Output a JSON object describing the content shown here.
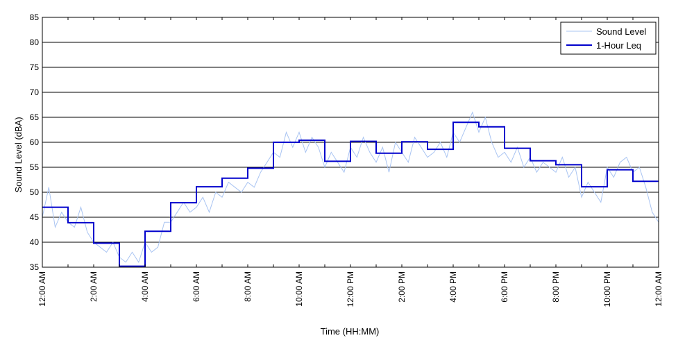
{
  "chart_data": {
    "type": "line",
    "title": "",
    "xlabel": "Time (HH:MM)",
    "ylabel": "Sound Level (dBA)",
    "ylim": [
      35,
      85
    ],
    "xlim": [
      0,
      24
    ],
    "x_unit": "hours",
    "grid": "horizontal",
    "legend_position": "top-right",
    "yticks": [
      35,
      40,
      45,
      50,
      55,
      60,
      65,
      70,
      75,
      80,
      85
    ],
    "xticks": [
      {
        "x": 0,
        "label": "12:00 AM"
      },
      {
        "x": 2,
        "label": "2:00 AM"
      },
      {
        "x": 4,
        "label": "4:00 AM"
      },
      {
        "x": 6,
        "label": "6:00 AM"
      },
      {
        "x": 8,
        "label": "8:00 AM"
      },
      {
        "x": 10,
        "label": "10:00 AM"
      },
      {
        "x": 12,
        "label": "12:00 PM"
      },
      {
        "x": 14,
        "label": "2:00 PM"
      },
      {
        "x": 16,
        "label": "4:00 PM"
      },
      {
        "x": 18,
        "label": "6:00 PM"
      },
      {
        "x": 20,
        "label": "8:00 PM"
      },
      {
        "x": 22,
        "label": "10:00 PM"
      },
      {
        "x": 24,
        "label": "12:00 AM"
      }
    ],
    "series": [
      {
        "name": "Sound Level",
        "color": "#a9c4f2",
        "style": "thin",
        "x": [
          0.0,
          0.25,
          0.5,
          0.75,
          1.0,
          1.25,
          1.5,
          1.75,
          2.0,
          2.25,
          2.5,
          2.75,
          3.0,
          3.25,
          3.5,
          3.75,
          4.0,
          4.25,
          4.5,
          4.75,
          5.0,
          5.25,
          5.5,
          5.75,
          6.0,
          6.25,
          6.5,
          6.75,
          7.0,
          7.25,
          7.5,
          7.75,
          8.0,
          8.25,
          8.5,
          8.75,
          9.0,
          9.25,
          9.5,
          9.75,
          10.0,
          10.25,
          10.5,
          10.75,
          11.0,
          11.25,
          11.5,
          11.75,
          12.0,
          12.25,
          12.5,
          12.75,
          13.0,
          13.25,
          13.5,
          13.75,
          14.0,
          14.25,
          14.5,
          14.75,
          15.0,
          15.25,
          15.5,
          15.75,
          16.0,
          16.25,
          16.5,
          16.75,
          17.0,
          17.25,
          17.5,
          17.75,
          18.0,
          18.25,
          18.5,
          18.75,
          19.0,
          19.25,
          19.5,
          19.75,
          20.0,
          20.25,
          20.5,
          20.75,
          21.0,
          21.25,
          21.5,
          21.75,
          22.0,
          22.25,
          22.5,
          22.75,
          23.0,
          23.25,
          23.5,
          23.75,
          24.0
        ],
        "values": [
          45,
          51,
          43,
          46,
          44,
          43,
          47,
          42,
          40,
          39,
          38,
          40,
          37,
          36,
          38,
          36,
          40,
          38,
          39,
          44,
          44,
          46,
          48,
          46,
          47,
          49,
          46,
          50,
          49,
          52,
          51,
          50,
          52,
          51,
          54,
          56,
          58,
          57,
          62,
          59,
          62,
          58,
          61,
          59,
          55,
          58,
          56,
          54,
          59,
          57,
          61,
          58,
          56,
          59,
          54,
          60,
          58,
          56,
          61,
          59,
          57,
          58,
          60,
          57,
          62,
          60,
          63,
          66,
          62,
          65,
          60,
          57,
          58,
          56,
          59,
          55,
          57,
          54,
          56,
          55,
          54,
          57,
          53,
          55,
          49,
          52,
          50,
          48,
          55,
          53,
          56,
          57,
          54,
          55,
          51,
          46,
          44
        ]
      },
      {
        "name": "1-Hour Leq",
        "color": "#0000cc",
        "style": "step",
        "hourly_values": [
          47.0,
          43.9,
          39.8,
          35.2,
          42.2,
          47.9,
          51.1,
          52.8,
          54.8,
          60.0,
          60.4,
          56.2,
          60.2,
          57.8,
          60.1,
          58.6,
          64.0,
          63.1,
          58.8,
          56.3,
          55.5,
          51.1,
          54.5,
          52.2
        ]
      }
    ]
  }
}
